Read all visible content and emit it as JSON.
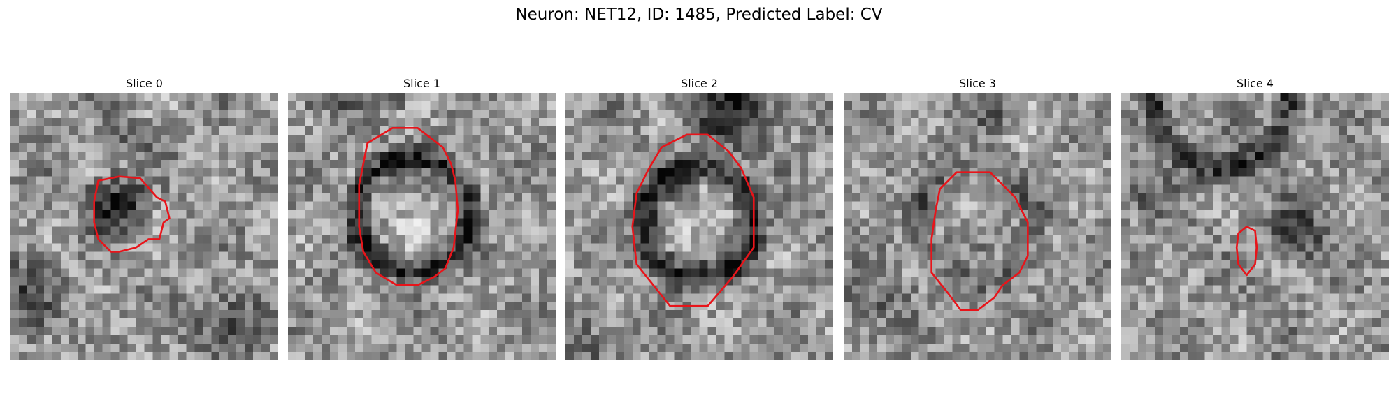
{
  "figure": {
    "title": "Neuron: NET12, ID: 1485, Predicted Label: CV",
    "contour_color": "#e8141a"
  },
  "panels": [
    {
      "title": "Slice 0"
    },
    {
      "title": "Slice 1"
    },
    {
      "title": "Slice 2"
    },
    {
      "title": "Slice 3"
    },
    {
      "title": "Slice 4"
    }
  ]
}
